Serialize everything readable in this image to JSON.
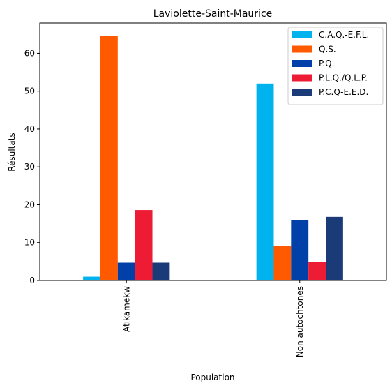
{
  "chart_data": {
    "type": "bar",
    "title": "Laviolette-Saint-Maurice",
    "xlabel": "Population",
    "ylabel": "Résultats",
    "categories": [
      "Atikamekw",
      "Non autochtones"
    ],
    "ylim": [
      0,
      68
    ],
    "yticks": [
      0,
      10,
      20,
      30,
      40,
      50,
      60
    ],
    "grid": false,
    "legend_position": "top-right",
    "series": [
      {
        "name": "C.A.Q.-E.F.L.",
        "color": "#00b2ee",
        "values": [
          1.0,
          52.0
        ]
      },
      {
        "name": "Q.S.",
        "color": "#ff5a00",
        "values": [
          64.5,
          9.2
        ]
      },
      {
        "name": "P.Q.",
        "color": "#0040a8",
        "values": [
          4.7,
          16.0
        ]
      },
      {
        "name": "P.L.Q./Q.L.P.",
        "color": "#ed1b34",
        "values": [
          18.6,
          4.9
        ]
      },
      {
        "name": "P.C.Q-E.E.D.",
        "color": "#1a3a78",
        "values": [
          4.7,
          16.8
        ]
      }
    ]
  }
}
